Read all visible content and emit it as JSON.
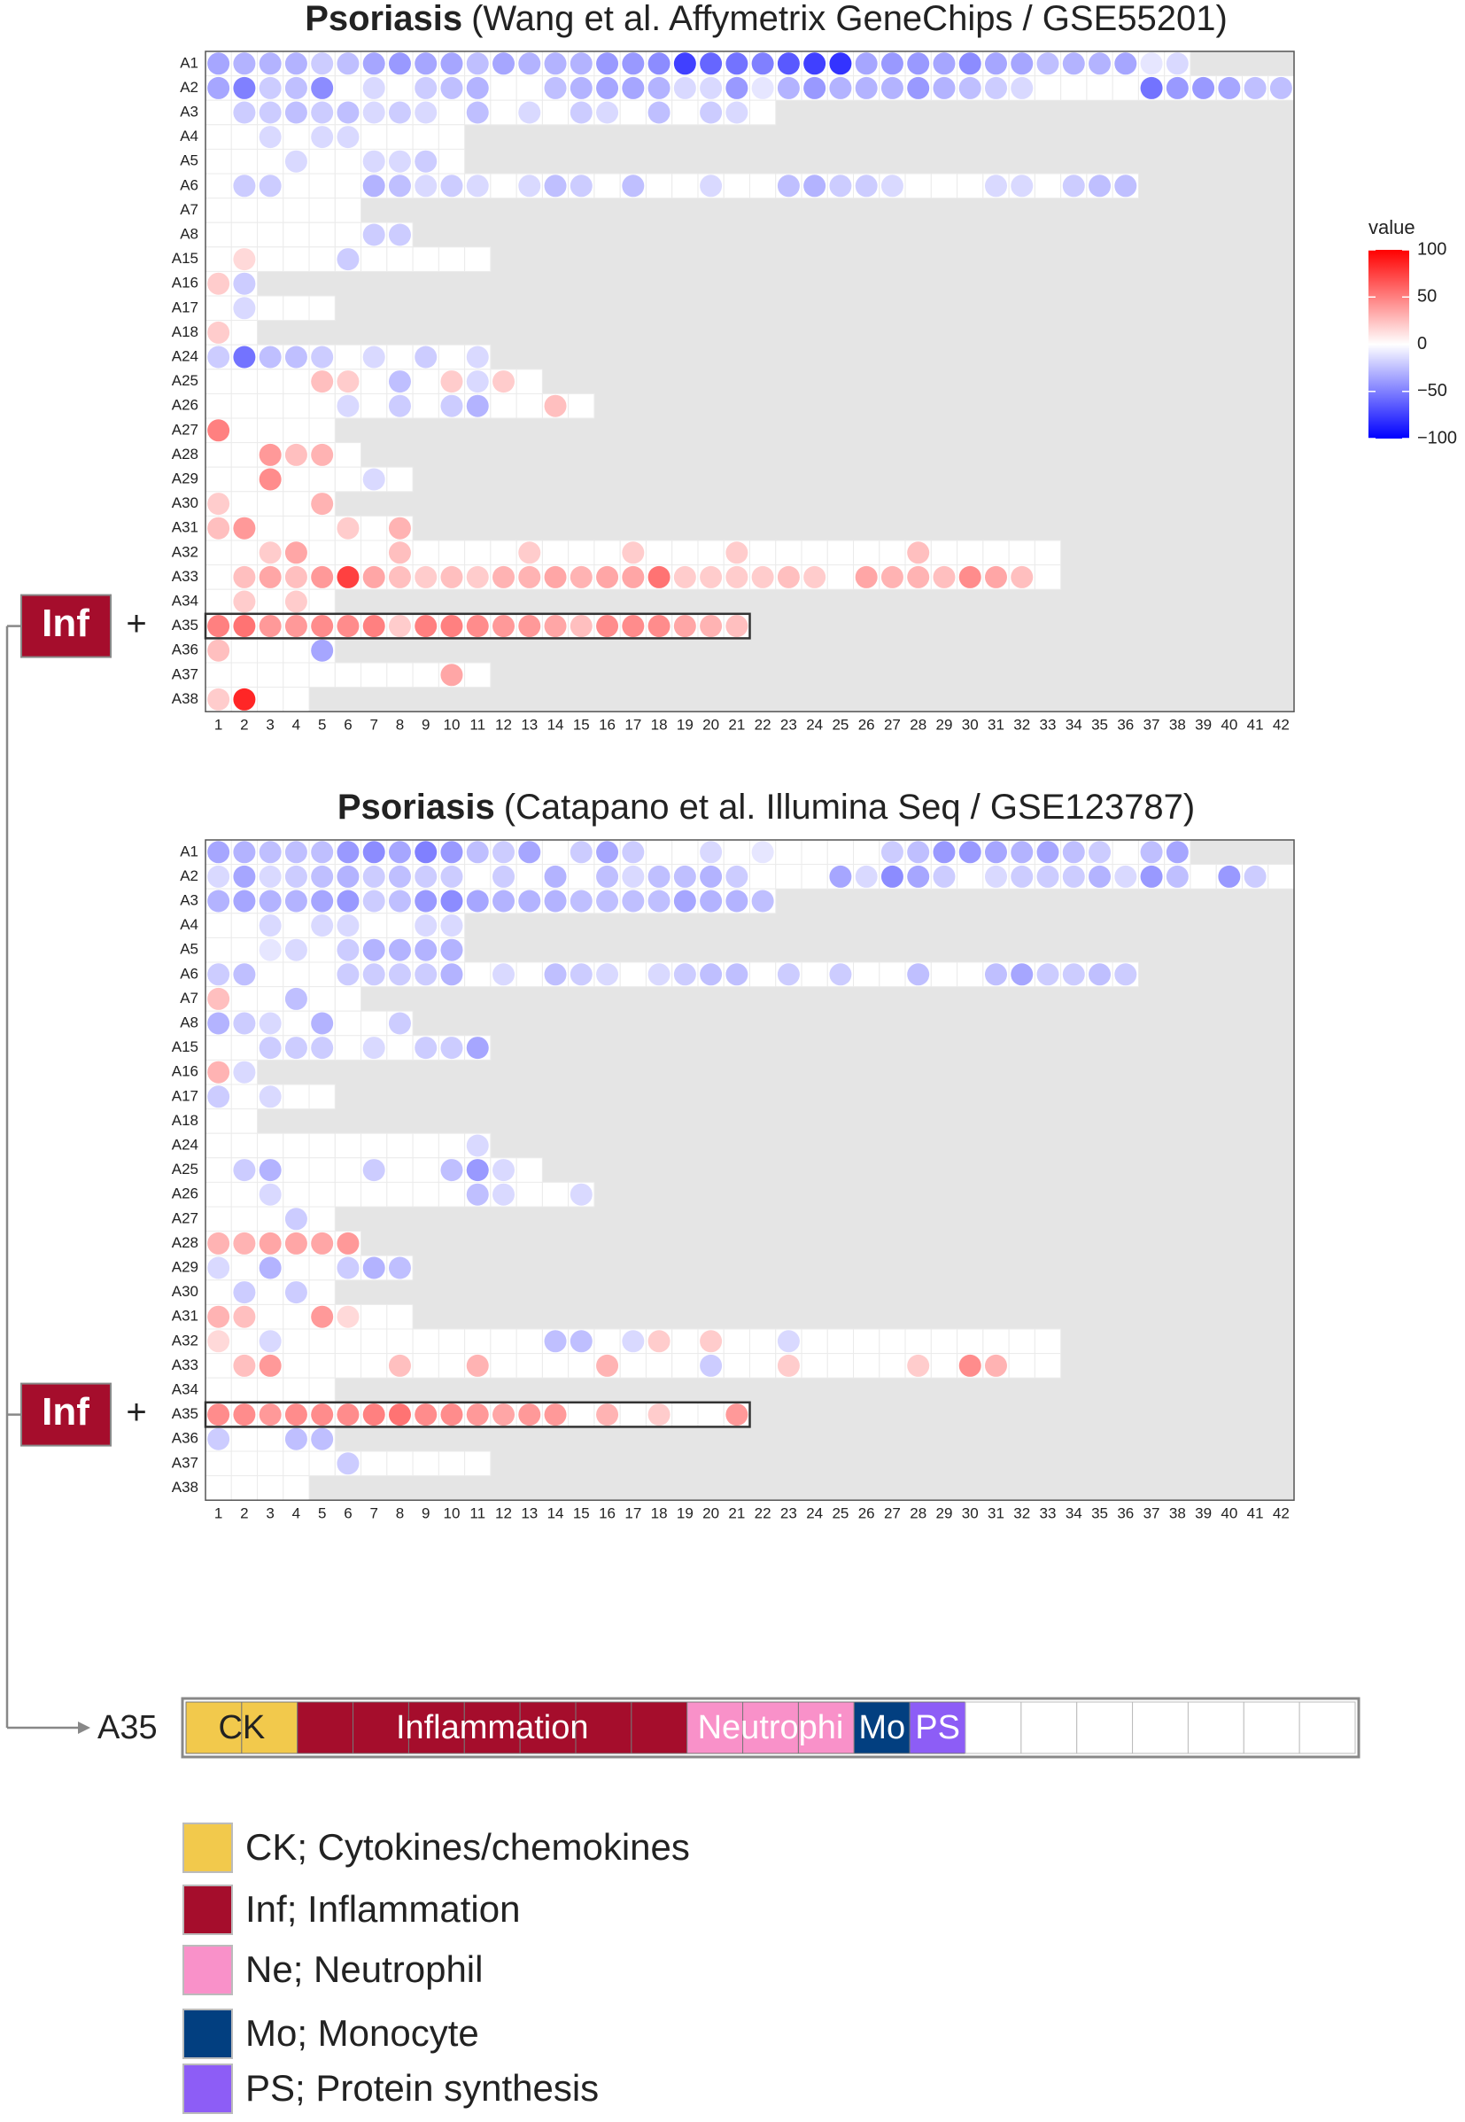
{
  "chart_data": [
    {
      "type": "dot-heatmap",
      "title": "Psoriasis",
      "subtitle": "(Wang et al. Affymetrix GeneChips / GSE55201)",
      "rows": [
        "A1",
        "A2",
        "A3",
        "A4",
        "A5",
        "A6",
        "A7",
        "A8",
        "A15",
        "A16",
        "A17",
        "A18",
        "A24",
        "A25",
        "A26",
        "A27",
        "A28",
        "A29",
        "A30",
        "A31",
        "A32",
        "A33",
        "A34",
        "A35",
        "A36",
        "A37",
        "A38"
      ],
      "columns": [
        1,
        2,
        3,
        4,
        5,
        6,
        7,
        8,
        9,
        10,
        11,
        12,
        13,
        14,
        15,
        16,
        17,
        18,
        19,
        20,
        21,
        22,
        23,
        24,
        25,
        26,
        27,
        28,
        29,
        30,
        31,
        32,
        33,
        34,
        35,
        36,
        37,
        38,
        39,
        40,
        41,
        42
      ],
      "highlight_row": "A35",
      "annotation": {
        "label": "Inf",
        "symbol": "+"
      },
      "values": [
        [
          -35,
          -30,
          -30,
          -30,
          -20,
          -25,
          -35,
          -40,
          -35,
          -35,
          -25,
          -35,
          -30,
          -30,
          -30,
          -40,
          -40,
          -45,
          -75,
          -60,
          -55,
          -50,
          -65,
          -75,
          -80,
          -35,
          -40,
          -40,
          -35,
          -45,
          -35,
          -35,
          -25,
          -30,
          -30,
          -35,
          -10,
          -15
        ],
        [
          -35,
          -50,
          -20,
          -25,
          -45,
          null,
          -15,
          null,
          -20,
          -25,
          -30,
          null,
          null,
          -25,
          -30,
          -35,
          -35,
          -30,
          -15,
          -15,
          -40,
          -10,
          -30,
          -40,
          -30,
          -30,
          -30,
          -40,
          -30,
          -25,
          -20,
          -15,
          null,
          null,
          null,
          null,
          -55,
          -40,
          -40,
          -35,
          -25,
          -25
        ],
        [
          null,
          -20,
          -20,
          -25,
          -20,
          -25,
          -15,
          -20,
          -15,
          null,
          -25,
          null,
          -15,
          null,
          -20,
          -15,
          null,
          -25,
          null,
          -20,
          -15,
          null
        ],
        [
          null,
          null,
          -15,
          null,
          -15,
          -15,
          null,
          null,
          null,
          null
        ],
        [
          null,
          null,
          null,
          -15,
          null,
          null,
          -15,
          -15,
          -20,
          null
        ],
        [
          null,
          -20,
          -20,
          null,
          null,
          null,
          -30,
          -25,
          -15,
          -20,
          -15,
          null,
          -15,
          -25,
          -20,
          null,
          -25,
          null,
          null,
          -15,
          null,
          null,
          -25,
          -30,
          -20,
          -20,
          -15,
          null,
          null,
          null,
          -15,
          -15,
          null,
          -20,
          -25,
          -25
        ],
        [
          null,
          null,
          null,
          null,
          null,
          null
        ],
        [
          null,
          null,
          null,
          null,
          null,
          null,
          -20,
          -20
        ],
        [
          null,
          15,
          null,
          null,
          null,
          -20,
          null,
          null,
          null,
          null,
          null
        ],
        [
          20,
          -20
        ],
        [
          null,
          -15,
          null,
          null,
          null
        ],
        [
          20,
          null
        ],
        [
          -20,
          -55,
          -25,
          -25,
          -20,
          null,
          -15,
          null,
          -20,
          null,
          -15
        ],
        [
          null,
          null,
          null,
          null,
          25,
          20,
          null,
          -25,
          null,
          20,
          -15,
          20,
          null
        ],
        [
          null,
          null,
          null,
          null,
          null,
          -15,
          null,
          -20,
          null,
          -20,
          -30,
          null,
          null,
          25,
          null
        ],
        [
          50,
          null,
          null,
          null,
          null
        ],
        [
          null,
          null,
          40,
          25,
          30,
          null
        ],
        [
          null,
          null,
          45,
          null,
          null,
          null,
          -15,
          null
        ],
        [
          20,
          null,
          null,
          null,
          30
        ],
        [
          25,
          40,
          null,
          null,
          null,
          20,
          null,
          30
        ],
        [
          null,
          null,
          20,
          35,
          null,
          null,
          null,
          25,
          null,
          null,
          null,
          null,
          20,
          null,
          null,
          null,
          20,
          null,
          null,
          null,
          20,
          null,
          null,
          null,
          null,
          null,
          null,
          25,
          null,
          null,
          null,
          null,
          null
        ],
        [
          null,
          25,
          35,
          25,
          40,
          75,
          35,
          25,
          20,
          25,
          20,
          30,
          30,
          35,
          30,
          35,
          35,
          55,
          20,
          20,
          20,
          20,
          25,
          20,
          null,
          35,
          30,
          30,
          25,
          45,
          35,
          25,
          null
        ],
        [
          null,
          20,
          null,
          20,
          null
        ],
        [
          50,
          55,
          40,
          40,
          45,
          45,
          50,
          20,
          50,
          50,
          45,
          40,
          40,
          35,
          25,
          45,
          45,
          45,
          35,
          30,
          25
        ],
        [
          25,
          null,
          null,
          null,
          -35
        ],
        [
          null,
          null,
          null,
          null,
          null,
          null,
          null,
          null,
          null,
          35,
          null
        ],
        [
          20,
          85,
          null,
          null
        ]
      ]
    },
    {
      "type": "dot-heatmap",
      "title": "Psoriasis",
      "subtitle": "(Catapano et al. Illumina Seq / GSE123787)",
      "rows": [
        "A1",
        "A2",
        "A3",
        "A4",
        "A5",
        "A6",
        "A7",
        "A8",
        "A15",
        "A16",
        "A17",
        "A18",
        "A24",
        "A25",
        "A26",
        "A27",
        "A28",
        "A29",
        "A30",
        "A31",
        "A32",
        "A33",
        "A34",
        "A35",
        "A36",
        "A37",
        "A38"
      ],
      "columns": [
        1,
        2,
        3,
        4,
        5,
        6,
        7,
        8,
        9,
        10,
        11,
        12,
        13,
        14,
        15,
        16,
        17,
        18,
        19,
        20,
        21,
        22,
        23,
        24,
        25,
        26,
        27,
        28,
        29,
        30,
        31,
        32,
        33,
        34,
        35,
        36,
        37,
        38,
        39,
        40,
        41,
        42
      ],
      "highlight_row": "A35",
      "annotation": {
        "label": "Inf",
        "symbol": "+"
      },
      "values": [
        [
          -35,
          -30,
          -25,
          -25,
          -25,
          -40,
          -45,
          -35,
          -50,
          -40,
          -25,
          -20,
          -35,
          null,
          -20,
          -35,
          -20,
          null,
          null,
          -15,
          null,
          -10,
          null,
          null,
          null,
          null,
          -20,
          -25,
          -40,
          -40,
          -35,
          -30,
          -35,
          -25,
          -20,
          null,
          -25,
          -35
        ],
        [
          -15,
          -35,
          -15,
          -20,
          -25,
          -30,
          -20,
          -25,
          -20,
          -20,
          null,
          -20,
          null,
          -30,
          null,
          -25,
          -15,
          -25,
          -25,
          -30,
          -20,
          null,
          null,
          null,
          -35,
          -15,
          -45,
          -35,
          -20,
          null,
          -15,
          -20,
          -20,
          -20,
          -30,
          -15,
          -40,
          -25,
          null,
          -40,
          -20,
          null
        ],
        [
          -30,
          -35,
          -30,
          -30,
          -35,
          -40,
          -20,
          -25,
          -40,
          -45,
          -35,
          -30,
          -30,
          -30,
          -25,
          -25,
          -25,
          -25,
          -35,
          -30,
          -30,
          -25
        ],
        [
          null,
          null,
          -15,
          null,
          -15,
          -15,
          null,
          null,
          -15,
          -15
        ],
        [
          null,
          null,
          -10,
          -15,
          null,
          -20,
          -30,
          -30,
          -30,
          -30
        ],
        [
          -20,
          -25,
          null,
          null,
          null,
          -20,
          -20,
          -20,
          -20,
          -30,
          null,
          -15,
          null,
          -25,
          -20,
          -15,
          null,
          -15,
          -20,
          -25,
          -25,
          null,
          -20,
          null,
          -20,
          null,
          null,
          -25,
          null,
          null,
          -25,
          -35,
          -20,
          -20,
          -25,
          -20
        ],
        [
          25,
          null,
          null,
          -25,
          null,
          null
        ],
        [
          -30,
          -20,
          -15,
          null,
          -30,
          null,
          null,
          -20
        ],
        [
          null,
          null,
          -20,
          -20,
          -20,
          null,
          -15,
          null,
          -20,
          -20,
          -35
        ],
        [
          30,
          -15
        ],
        [
          -20,
          null,
          -15,
          null,
          null
        ],
        [
          null,
          null
        ],
        [
          null,
          null,
          null,
          null,
          null,
          null,
          null,
          null,
          null,
          null,
          -15
        ],
        [
          null,
          -20,
          -30,
          null,
          null,
          null,
          -20,
          null,
          null,
          -25,
          -40,
          -15,
          null
        ],
        [
          null,
          null,
          -15,
          null,
          null,
          null,
          null,
          null,
          null,
          null,
          -25,
          -15,
          null,
          null,
          -15
        ],
        [
          null,
          null,
          null,
          -20,
          null
        ],
        [
          30,
          30,
          35,
          35,
          35,
          40
        ],
        [
          -15,
          null,
          -30,
          null,
          null,
          -20,
          -30,
          -25
        ],
        [
          null,
          -20,
          null,
          -20,
          null
        ],
        [
          30,
          25,
          null,
          null,
          40,
          15,
          null,
          null
        ],
        [
          15,
          null,
          -15,
          null,
          null,
          null,
          null,
          null,
          null,
          null,
          null,
          null,
          null,
          -25,
          -25,
          null,
          -15,
          20,
          null,
          20,
          null,
          null,
          -15,
          null,
          null,
          null,
          null,
          null,
          null,
          null,
          null,
          null,
          null
        ],
        [
          null,
          25,
          40,
          null,
          null,
          null,
          null,
          25,
          null,
          null,
          30,
          null,
          null,
          null,
          null,
          30,
          null,
          null,
          null,
          -20,
          null,
          null,
          20,
          null,
          null,
          null,
          null,
          20,
          null,
          45,
          30,
          null,
          null
        ],
        [
          null,
          null,
          null,
          null,
          null
        ],
        [
          45,
          45,
          40,
          45,
          45,
          45,
          50,
          55,
          45,
          45,
          40,
          35,
          40,
          40,
          null,
          30,
          null,
          20,
          null,
          null,
          40
        ],
        [
          -20,
          null,
          null,
          -25,
          -25
        ],
        [
          null,
          null,
          null,
          null,
          null,
          -20,
          null,
          null,
          null,
          null,
          null
        ],
        [
          null,
          null,
          null,
          null
        ]
      ]
    }
  ],
  "color_scale": {
    "title": "value",
    "lim": [
      -100,
      100
    ],
    "colors": [
      "#0000ff",
      "#ffffff",
      "#ff0000"
    ],
    "ticks": [
      100,
      50,
      0,
      {
        "value": -50,
        "label": "−50"
      },
      {
        "value": -100,
        "label": "−100"
      }
    ]
  },
  "module_bar": {
    "label": "A35",
    "segments": [
      {
        "label": "CK",
        "count": 2,
        "color": "#f2c94c"
      },
      {
        "label": "Inflammation",
        "count": 7,
        "color": "#a50d2c"
      },
      {
        "label": "Neutrophi",
        "count": 3,
        "color": "#f991c9"
      },
      {
        "label": "Mo",
        "count": 1,
        "color": "#023f80"
      },
      {
        "label": "PS",
        "count": 1,
        "color": "#8d5df6"
      },
      {
        "label": null,
        "count": 7,
        "color": "#ffffff"
      }
    ]
  },
  "legend": [
    {
      "label": "CK; Cytokines/chemokines",
      "color": "#f2c94c"
    },
    {
      "label": "Inf; Inflammation",
      "color": "#a50d2c"
    },
    {
      "label": "Ne; Neutrophil",
      "color": "#f991c9"
    },
    {
      "label": "Mo; Monocyte",
      "color": "#023f80"
    },
    {
      "label": "PS; Protein synthesis",
      "color": "#8d5df6"
    }
  ]
}
